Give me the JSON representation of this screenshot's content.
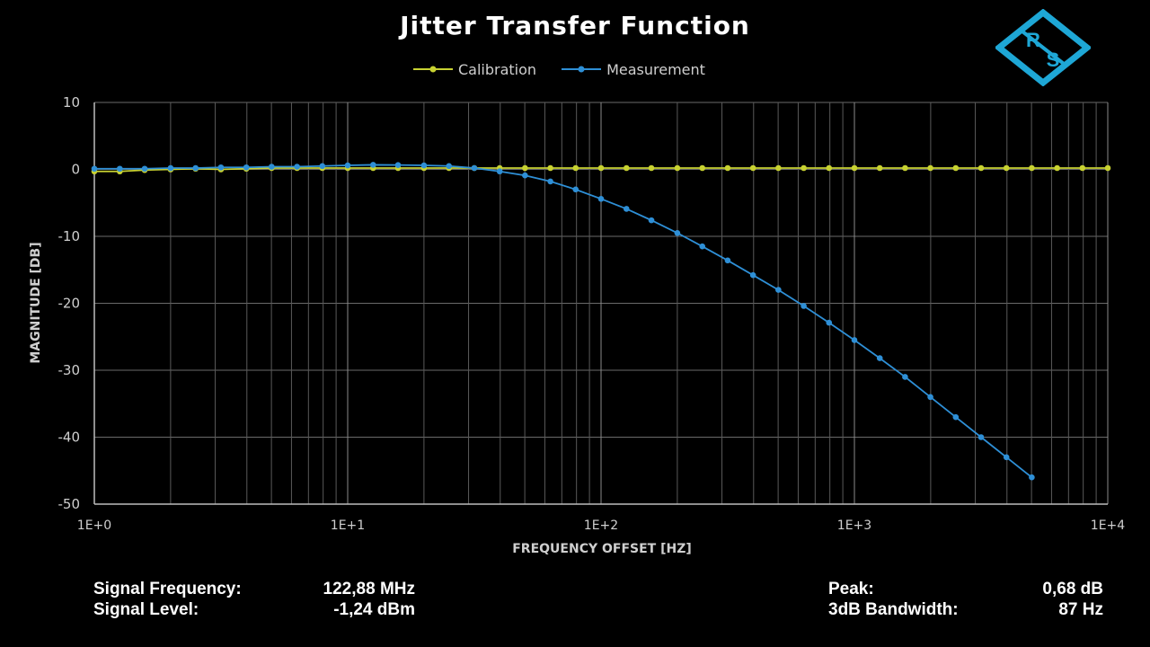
{
  "chart_data": {
    "type": "line",
    "title": "Jitter Transfer Function",
    "xlabel": "FREQUENCY OFFSET [HZ]",
    "ylabel": "MAGNITUDE [DB]",
    "x_scale": "log",
    "xlim": [
      1,
      10000
    ],
    "ylim": [
      -50,
      10
    ],
    "grid": true,
    "legend_position": "top-center",
    "x_ticks": [
      1,
      10,
      100,
      1000,
      10000
    ],
    "x_tick_labels": [
      "1E+0",
      "1E+1",
      "1E+2",
      "1E+3",
      "1E+4"
    ],
    "y_ticks": [
      10,
      0,
      -10,
      -20,
      -30,
      -40,
      -50
    ],
    "y_tick_labels": [
      "10",
      "0",
      "-10",
      "-20",
      "-30",
      "-40",
      "-50"
    ],
    "series": [
      {
        "name": "Calibration",
        "color": "#c8d232",
        "points": [
          [
            1.0,
            -0.3
          ],
          [
            1.26,
            -0.3
          ],
          [
            1.58,
            -0.1
          ],
          [
            2.0,
            0.0
          ],
          [
            2.51,
            0.1
          ],
          [
            3.16,
            0.0
          ],
          [
            3.98,
            0.1
          ],
          [
            5.01,
            0.2
          ],
          [
            6.31,
            0.2
          ],
          [
            7.94,
            0.2
          ],
          [
            10.0,
            0.2
          ],
          [
            12.6,
            0.2
          ],
          [
            15.8,
            0.2
          ],
          [
            20.0,
            0.2
          ],
          [
            25.1,
            0.2
          ],
          [
            31.6,
            0.2
          ],
          [
            39.8,
            0.2
          ],
          [
            50.1,
            0.2
          ],
          [
            63.1,
            0.2
          ],
          [
            79.4,
            0.2
          ],
          [
            100,
            0.2
          ],
          [
            126,
            0.2
          ],
          [
            158,
            0.2
          ],
          [
            200,
            0.2
          ],
          [
            251,
            0.2
          ],
          [
            316,
            0.2
          ],
          [
            398,
            0.2
          ],
          [
            501,
            0.2
          ],
          [
            631,
            0.2
          ],
          [
            794,
            0.2
          ],
          [
            1000,
            0.2
          ],
          [
            1259,
            0.2
          ],
          [
            1585,
            0.2
          ],
          [
            1995,
            0.2
          ],
          [
            2512,
            0.2
          ],
          [
            3162,
            0.2
          ],
          [
            3981,
            0.2
          ],
          [
            5012,
            0.2
          ],
          [
            6310,
            0.2
          ],
          [
            7943,
            0.2
          ],
          [
            10000,
            0.2
          ]
        ]
      },
      {
        "name": "Measurement",
        "color": "#2e8fd6",
        "points": [
          [
            1.0,
            0.1
          ],
          [
            1.26,
            0.1
          ],
          [
            1.58,
            0.1
          ],
          [
            2.0,
            0.2
          ],
          [
            2.51,
            0.2
          ],
          [
            3.16,
            0.3
          ],
          [
            3.98,
            0.3
          ],
          [
            5.01,
            0.4
          ],
          [
            6.31,
            0.4
          ],
          [
            7.94,
            0.5
          ],
          [
            10.0,
            0.6
          ],
          [
            12.6,
            0.68
          ],
          [
            15.8,
            0.65
          ],
          [
            20.0,
            0.6
          ],
          [
            25.1,
            0.5
          ],
          [
            31.6,
            0.2
          ],
          [
            39.8,
            -0.3
          ],
          [
            50.1,
            -0.9
          ],
          [
            63.1,
            -1.8
          ],
          [
            79.4,
            -3.0
          ],
          [
            100,
            -4.4
          ],
          [
            126,
            -5.9
          ],
          [
            158,
            -7.6
          ],
          [
            200,
            -9.5
          ],
          [
            251,
            -11.5
          ],
          [
            316,
            -13.6
          ],
          [
            398,
            -15.8
          ],
          [
            501,
            -18.0
          ],
          [
            631,
            -20.4
          ],
          [
            794,
            -22.9
          ],
          [
            1000,
            -25.5
          ],
          [
            1259,
            -28.2
          ],
          [
            1585,
            -31.0
          ],
          [
            1995,
            -34.0
          ],
          [
            2512,
            -37.0
          ],
          [
            3162,
            -40.0
          ],
          [
            3981,
            -43.0
          ],
          [
            5012,
            -46.0
          ]
        ]
      }
    ]
  },
  "info": {
    "signal_frequency_label": "Signal Frequency:",
    "signal_frequency_value": "122,88 MHz",
    "signal_level_label": "Signal Level:",
    "signal_level_value": "-1,24 dBm",
    "peak_label": "Peak:",
    "peak_value": "0,68 dB",
    "bandwidth_label": "3dB Bandwidth:",
    "bandwidth_value": "87 Hz"
  },
  "logo": {
    "icon": "rohde-schwarz-logo",
    "text": "RS",
    "color": "#1ea7d6"
  }
}
